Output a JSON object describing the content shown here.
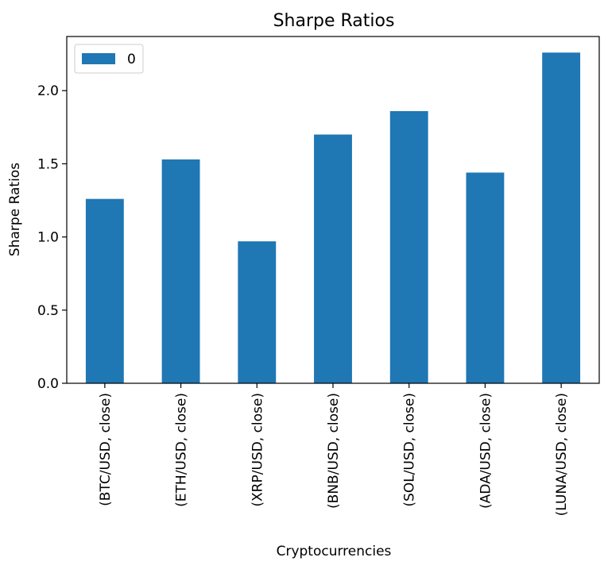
{
  "chart_data": {
    "type": "bar",
    "title": "Sharpe Ratios",
    "xlabel": "Cryptocurrencies",
    "ylabel": "Sharpe Ratios",
    "categories": [
      "(BTC/USD, close)",
      "(ETH/USD, close)",
      "(XRP/USD, close)",
      "(BNB/USD, close)",
      "(SOL/USD, close)",
      "(ADA/USD, close)",
      "(LUNA/USD, close)"
    ],
    "series": [
      {
        "name": "0",
        "values": [
          1.26,
          1.53,
          0.97,
          1.7,
          1.86,
          1.44,
          2.26
        ]
      }
    ],
    "ylim": [
      0,
      2.37
    ],
    "yticks": [
      0.0,
      0.5,
      1.0,
      1.5,
      2.0
    ],
    "ytick_labels": [
      "0.0",
      "0.5",
      "1.0",
      "1.5",
      "2.0"
    ],
    "grid": false,
    "legend_position": "top-left",
    "bar_color": "#1f77b4"
  }
}
